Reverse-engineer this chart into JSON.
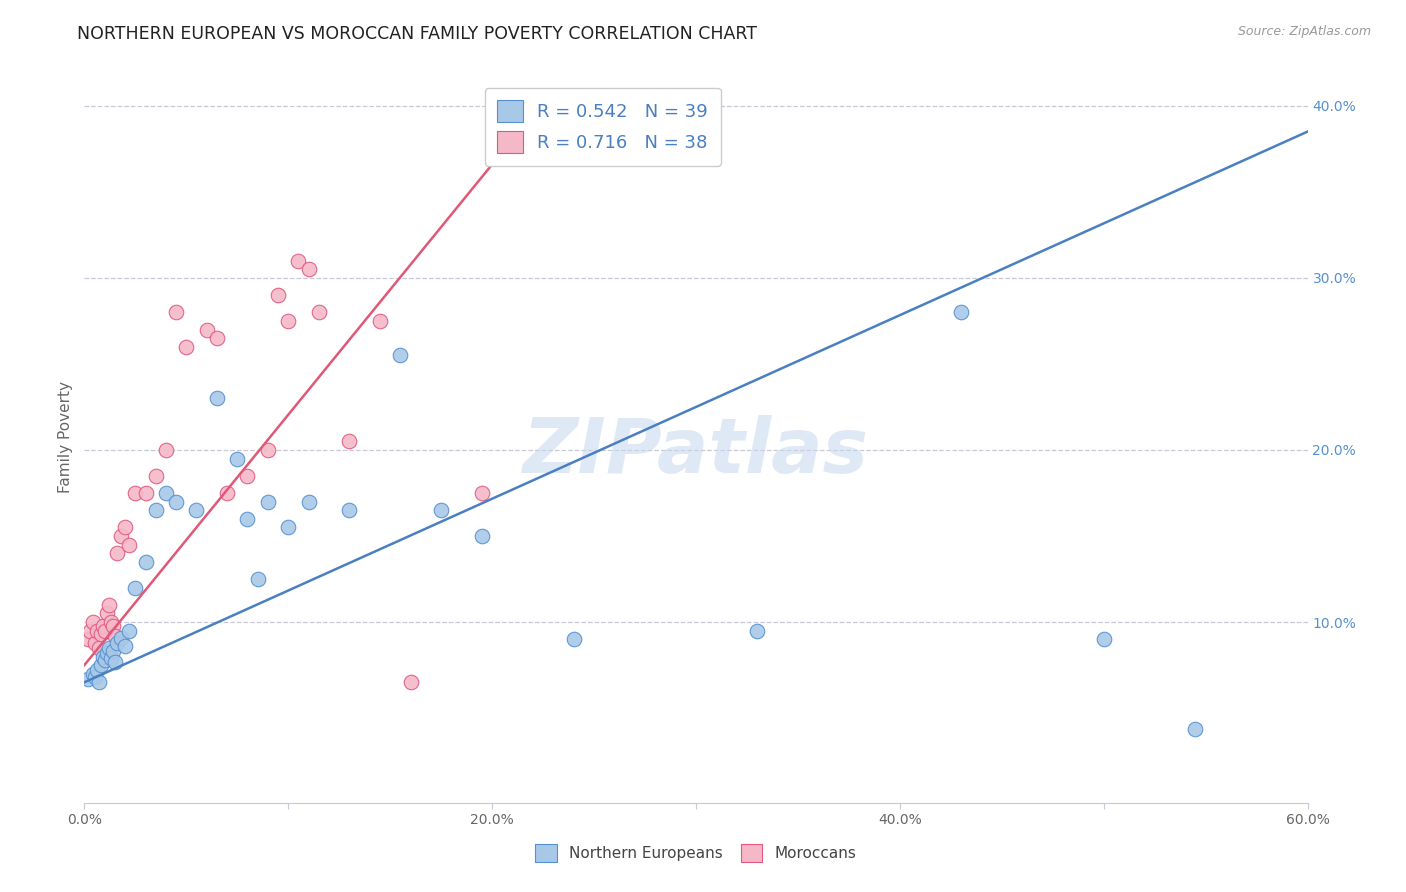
{
  "title": "NORTHERN EUROPEAN VS MOROCCAN FAMILY POVERTY CORRELATION CHART",
  "source": "Source: ZipAtlas.com",
  "ylabel": "Family Poverty",
  "watermark": "ZIPatlas",
  "xlim": [
    0.0,
    0.6
  ],
  "ylim": [
    -0.005,
    0.42
  ],
  "xticks": [
    0.0,
    0.1,
    0.2,
    0.3,
    0.4,
    0.5,
    0.6
  ],
  "xtick_labels": [
    "0.0%",
    "",
    "20.0%",
    "",
    "40.0%",
    "",
    "60.0%"
  ],
  "ytick_vals": [
    0.1,
    0.2,
    0.3,
    0.4
  ],
  "ytick_labels": [
    "10.0%",
    "20.0%",
    "30.0%",
    "40.0%"
  ],
  "legend_R_blue": "0.542",
  "legend_N_blue": "39",
  "legend_R_pink": "0.716",
  "legend_N_pink": "38",
  "blue_fill": "#a8c8e8",
  "pink_fill": "#f5b8c8",
  "blue_edge": "#5590d0",
  "pink_edge": "#e05880",
  "blue_line": "#4a7fc0",
  "pink_line": "#e05878",
  "grid_color": "#c8c8d8",
  "bg_color": "#ffffff",
  "blue_line_x0": 0.0,
  "blue_line_y0": 0.065,
  "blue_line_x1": 0.6,
  "blue_line_y1": 0.385,
  "pink_line_x0": 0.0,
  "pink_line_y0": 0.075,
  "pink_line_x1": 0.22,
  "pink_line_y1": 0.395,
  "ne_x": [
    0.002,
    0.004,
    0.005,
    0.006,
    0.007,
    0.008,
    0.009,
    0.01,
    0.011,
    0.012,
    0.013,
    0.014,
    0.015,
    0.016,
    0.018,
    0.02,
    0.022,
    0.025,
    0.03,
    0.035,
    0.04,
    0.045,
    0.055,
    0.065,
    0.075,
    0.08,
    0.085,
    0.09,
    0.1,
    0.11,
    0.13,
    0.155,
    0.175,
    0.195,
    0.24,
    0.33,
    0.43,
    0.5,
    0.545
  ],
  "ne_y": [
    0.067,
    0.07,
    0.068,
    0.072,
    0.065,
    0.075,
    0.08,
    0.078,
    0.082,
    0.085,
    0.079,
    0.083,
    0.077,
    0.088,
    0.091,
    0.086,
    0.095,
    0.12,
    0.135,
    0.165,
    0.175,
    0.17,
    0.165,
    0.23,
    0.195,
    0.16,
    0.125,
    0.17,
    0.155,
    0.17,
    0.165,
    0.255,
    0.165,
    0.15,
    0.09,
    0.095,
    0.28,
    0.09,
    0.038
  ],
  "ma_x": [
    0.002,
    0.003,
    0.004,
    0.005,
    0.006,
    0.007,
    0.008,
    0.009,
    0.01,
    0.011,
    0.012,
    0.013,
    0.014,
    0.015,
    0.016,
    0.018,
    0.02,
    0.022,
    0.025,
    0.03,
    0.035,
    0.04,
    0.045,
    0.05,
    0.06,
    0.065,
    0.07,
    0.08,
    0.09,
    0.095,
    0.1,
    0.105,
    0.11,
    0.115,
    0.13,
    0.145,
    0.16,
    0.195
  ],
  "ma_y": [
    0.09,
    0.095,
    0.1,
    0.088,
    0.095,
    0.085,
    0.093,
    0.098,
    0.095,
    0.105,
    0.11,
    0.1,
    0.098,
    0.092,
    0.14,
    0.15,
    0.155,
    0.145,
    0.175,
    0.175,
    0.185,
    0.2,
    0.28,
    0.26,
    0.27,
    0.265,
    0.175,
    0.185,
    0.2,
    0.29,
    0.275,
    0.31,
    0.305,
    0.28,
    0.205,
    0.275,
    0.065,
    0.175
  ]
}
